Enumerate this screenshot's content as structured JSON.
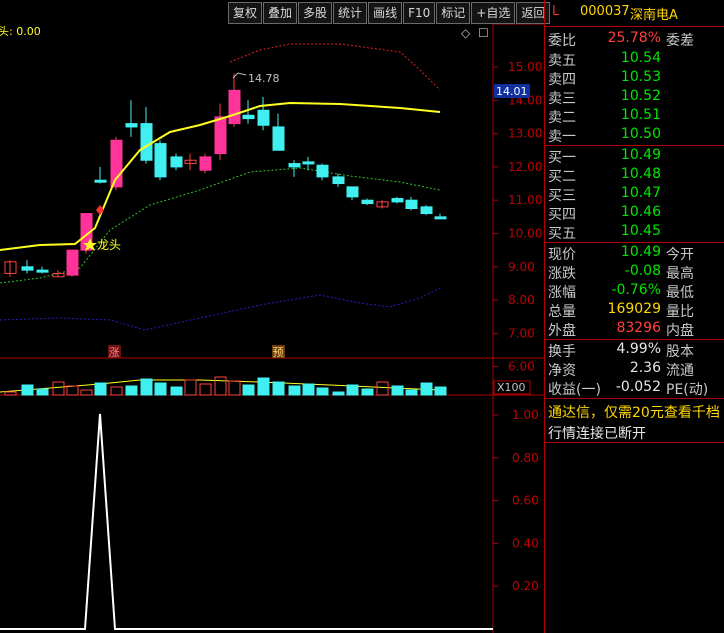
{
  "toolbar": [
    "复权",
    "叠加",
    "多股",
    "统计",
    "画线",
    "F10",
    "标记",
    "+自选",
    "返回"
  ],
  "chart": {
    "indicator_label": "头: 0.00",
    "peak_label": "14.78",
    "dragon_label": "龙头",
    "marker_zhang": "涨",
    "marker_yu": "预",
    "price_tag": "14.01",
    "vol_unit": "X100",
    "price_ticks": [
      "15.00",
      "14.00",
      "13.00",
      "12.00",
      "11.00",
      "10.00",
      "9.00",
      "8.00",
      "7.00",
      "6.00"
    ],
    "osc_ticks": [
      "1.00",
      "0.80",
      "0.60",
      "0.40",
      "0.20"
    ],
    "colors": {
      "up": "#ff3399",
      "down": "#40f0f0",
      "ma": "#ffff20",
      "band_up": "#e02020",
      "band_mid": "#30c030",
      "band_low": "#2020c0"
    }
  },
  "header": {
    "label": "L",
    "code": "000037",
    "name": "深南电A"
  },
  "quote_rows": [
    {
      "k": "委比",
      "v": "25.78%",
      "vcls": "red",
      "k2": "委差"
    },
    {
      "k": "卖五",
      "v": "10.54",
      "vcls": "green",
      "k2": ""
    },
    {
      "k": "卖四",
      "v": "10.53",
      "vcls": "green",
      "k2": ""
    },
    {
      "k": "卖三",
      "v": "10.52",
      "vcls": "green",
      "k2": ""
    },
    {
      "k": "卖二",
      "v": "10.51",
      "vcls": "green",
      "k2": ""
    },
    {
      "k": "卖一",
      "v": "10.50",
      "vcls": "green",
      "k2": ""
    },
    {
      "k": "买一",
      "v": "10.49",
      "vcls": "green",
      "k2": ""
    },
    {
      "k": "买二",
      "v": "10.48",
      "vcls": "green",
      "k2": ""
    },
    {
      "k": "买三",
      "v": "10.47",
      "vcls": "green",
      "k2": ""
    },
    {
      "k": "买四",
      "v": "10.46",
      "vcls": "green",
      "k2": ""
    },
    {
      "k": "买五",
      "v": "10.45",
      "vcls": "green",
      "k2": ""
    },
    {
      "k": "现价",
      "v": "10.49",
      "vcls": "green",
      "k2": "今开"
    },
    {
      "k": "涨跌",
      "v": "-0.08",
      "vcls": "green",
      "k2": "最高"
    },
    {
      "k": "涨幅",
      "v": "-0.76%",
      "vcls": "green",
      "k2": "最低"
    },
    {
      "k": "总量",
      "v": "169029",
      "vcls": "yellow",
      "k2": "量比"
    },
    {
      "k": "外盘",
      "v": "83296",
      "vcls": "red",
      "k2": "内盘"
    },
    {
      "k": "换手",
      "v": "4.99%",
      "vcls": "white",
      "k2": "股本"
    },
    {
      "k": "净资",
      "v": "2.36",
      "vcls": "white",
      "k2": "流通"
    },
    {
      "k": "收益(一)",
      "v": "-0.052",
      "vcls": "white",
      "k2": "PE(动)"
    }
  ],
  "messages": [
    "通达信，仅需20元查看千档",
    "行情连接已断开"
  ]
}
